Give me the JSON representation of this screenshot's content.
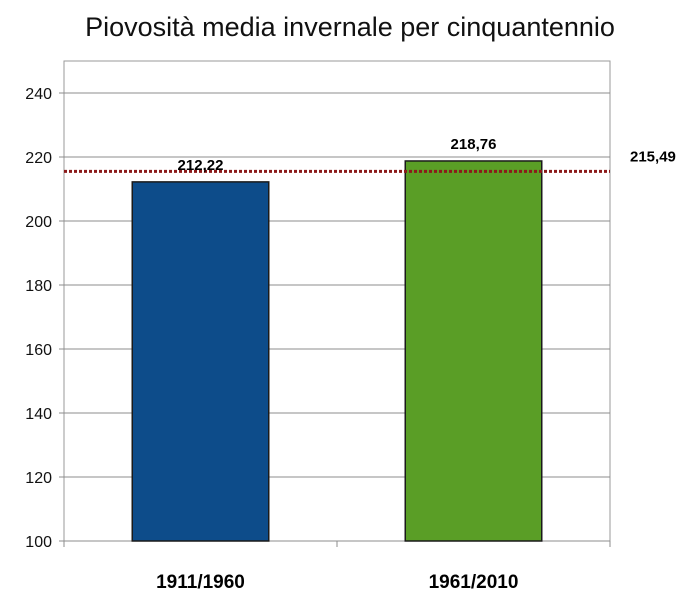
{
  "chart_data": {
    "type": "bar",
    "title": "Piovosità media invernale per cinquantennio",
    "xlabel": "",
    "ylabel": "",
    "categories": [
      "1911/1960",
      "1961/2010"
    ],
    "values": [
      212.22,
      218.76
    ],
    "value_labels": [
      "212,22",
      "218,76"
    ],
    "bar_colors": [
      "#0d4c8a",
      "#5a9e26"
    ],
    "ylim": [
      100,
      250
    ],
    "yticks": [
      100,
      120,
      140,
      160,
      180,
      200,
      220,
      240
    ],
    "grid": true,
    "legend": "none",
    "reference_line": {
      "value": 215.49,
      "label": "215,49",
      "color": "#8b1a1a",
      "style": "dotted"
    }
  }
}
